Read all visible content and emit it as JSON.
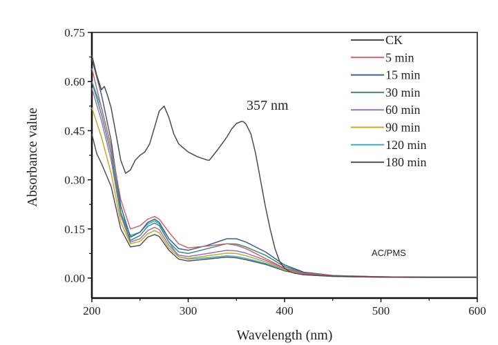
{
  "chart_data": {
    "type": "line",
    "title": "",
    "xlabel": "Wavelength (nm)",
    "ylabel": "Absorbance value",
    "xlim": [
      200,
      600
    ],
    "ylim": [
      -0.05,
      0.75
    ],
    "xticks": [
      200,
      300,
      400,
      500,
      600
    ],
    "xtick_labels": [
      "200",
      "300",
      "400",
      "500",
      "600"
    ],
    "yticks": [
      0.0,
      0.15,
      0.3,
      0.45,
      0.6,
      0.75
    ],
    "ytick_labels": [
      "0.00",
      "0.15",
      "0.30",
      "0.45",
      "0.60",
      "0.75"
    ],
    "grid": false,
    "legend_position": "top-right",
    "annotations": [
      {
        "text": "357 nm",
        "x": 357,
        "y": 0.52
      },
      {
        "text": "AC/PMS",
        "x": 485,
        "y": 0.075
      }
    ],
    "series": [
      {
        "name": "CK",
        "color": "#4a4a4a",
        "x": [
          200,
          205,
          210,
          213,
          216,
          220,
          225,
          230,
          235,
          240,
          245,
          250,
          255,
          260,
          265,
          270,
          275,
          280,
          285,
          290,
          300,
          310,
          320,
          322,
          330,
          340,
          345,
          350,
          355,
          357,
          360,
          365,
          370,
          375,
          380,
          385,
          390,
          395,
          400,
          405,
          410,
          420,
          440,
          470,
          500,
          550,
          600
        ],
        "y": [
          0.68,
          0.62,
          0.575,
          0.585,
          0.56,
          0.52,
          0.44,
          0.36,
          0.32,
          0.33,
          0.36,
          0.375,
          0.385,
          0.41,
          0.46,
          0.51,
          0.525,
          0.49,
          0.44,
          0.41,
          0.385,
          0.37,
          0.36,
          0.36,
          0.39,
          0.43,
          0.455,
          0.472,
          0.478,
          0.478,
          0.47,
          0.44,
          0.38,
          0.3,
          0.22,
          0.15,
          0.09,
          0.05,
          0.03,
          0.02,
          0.015,
          0.01,
          0.007,
          0.004,
          0.003,
          0.002,
          0.002
        ]
      },
      {
        "name": "5 min",
        "color": "#c9626a",
        "x": [
          200,
          210,
          220,
          230,
          240,
          250,
          258,
          265,
          270,
          280,
          290,
          300,
          320,
          340,
          350,
          360,
          380,
          400,
          420,
          450,
          500,
          550,
          600
        ],
        "y": [
          0.64,
          0.52,
          0.4,
          0.24,
          0.15,
          0.16,
          0.18,
          0.188,
          0.18,
          0.14,
          0.105,
          0.092,
          0.098,
          0.105,
          0.1,
          0.09,
          0.06,
          0.03,
          0.015,
          0.007,
          0.004,
          0.003,
          0.003
        ]
      },
      {
        "name": "15 min",
        "color": "#3b5f8a",
        "x": [
          200,
          210,
          220,
          230,
          240,
          250,
          258,
          265,
          270,
          280,
          290,
          300,
          320,
          340,
          350,
          360,
          380,
          400,
          420,
          450,
          500,
          550,
          600
        ],
        "y": [
          0.67,
          0.56,
          0.42,
          0.22,
          0.125,
          0.14,
          0.17,
          0.18,
          0.17,
          0.12,
          0.09,
          0.085,
          0.1,
          0.12,
          0.12,
          0.11,
          0.08,
          0.04,
          0.018,
          0.008,
          0.004,
          0.003,
          0.003
        ]
      },
      {
        "name": "30 min",
        "color": "#3f8a78",
        "x": [
          200,
          210,
          220,
          230,
          240,
          250,
          258,
          265,
          270,
          280,
          290,
          300,
          320,
          340,
          350,
          360,
          380,
          400,
          420,
          450,
          500,
          550,
          600
        ],
        "y": [
          0.6,
          0.5,
          0.38,
          0.2,
          0.115,
          0.13,
          0.158,
          0.168,
          0.16,
          0.11,
          0.08,
          0.075,
          0.09,
          0.105,
          0.104,
          0.095,
          0.07,
          0.035,
          0.016,
          0.007,
          0.004,
          0.003,
          0.003
        ]
      },
      {
        "name": "60 min",
        "color": "#9a72b0",
        "x": [
          200,
          210,
          220,
          230,
          240,
          250,
          258,
          265,
          270,
          280,
          290,
          300,
          320,
          340,
          350,
          360,
          380,
          400,
          420,
          450,
          500,
          550,
          600
        ],
        "y": [
          0.58,
          0.48,
          0.36,
          0.19,
          0.11,
          0.12,
          0.145,
          0.155,
          0.148,
          0.1,
          0.07,
          0.066,
          0.075,
          0.085,
          0.083,
          0.076,
          0.055,
          0.028,
          0.013,
          0.006,
          0.004,
          0.003,
          0.003
        ]
      },
      {
        "name": "90 min",
        "color": "#c4a82c",
        "x": [
          200,
          210,
          220,
          230,
          240,
          250,
          258,
          265,
          270,
          280,
          290,
          300,
          320,
          340,
          350,
          360,
          380,
          400,
          420,
          450,
          500,
          550,
          600
        ],
        "y": [
          0.52,
          0.43,
          0.32,
          0.17,
          0.105,
          0.112,
          0.135,
          0.145,
          0.138,
          0.092,
          0.065,
          0.06,
          0.068,
          0.076,
          0.075,
          0.068,
          0.05,
          0.025,
          0.012,
          0.006,
          0.004,
          0.003,
          0.003
        ]
      },
      {
        "name": "120 min",
        "color": "#36b0c2",
        "x": [
          200,
          210,
          220,
          230,
          240,
          250,
          258,
          265,
          270,
          280,
          290,
          300,
          320,
          340,
          350,
          360,
          380,
          400,
          420,
          450,
          500,
          550,
          600
        ],
        "y": [
          0.6,
          0.52,
          0.4,
          0.2,
          0.13,
          0.14,
          0.165,
          0.175,
          0.165,
          0.11,
          0.065,
          0.058,
          0.062,
          0.068,
          0.066,
          0.06,
          0.045,
          0.024,
          0.012,
          0.006,
          0.004,
          0.003,
          0.003
        ]
      },
      {
        "name": "180 min",
        "color": "#5a4d55",
        "x": [
          200,
          205,
          210,
          220,
          230,
          240,
          250,
          258,
          265,
          270,
          280,
          290,
          300,
          320,
          340,
          350,
          360,
          380,
          400,
          420,
          450,
          500,
          550,
          600
        ],
        "y": [
          0.44,
          0.38,
          0.35,
          0.28,
          0.15,
          0.095,
          0.1,
          0.125,
          0.133,
          0.127,
          0.085,
          0.058,
          0.052,
          0.058,
          0.064,
          0.062,
          0.056,
          0.042,
          0.022,
          0.011,
          0.005,
          0.003,
          0.003,
          0.003
        ]
      }
    ]
  }
}
